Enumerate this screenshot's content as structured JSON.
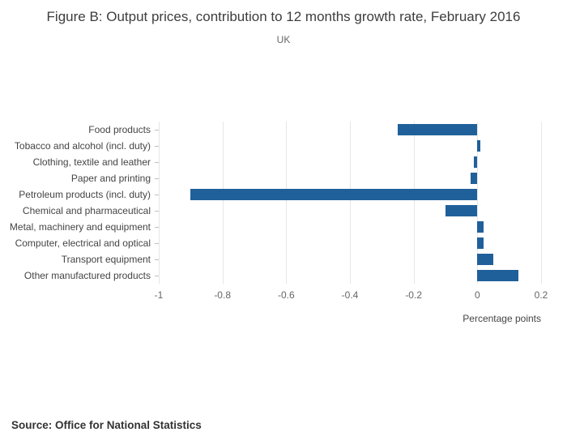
{
  "title": "Figure B: Output prices, contribution to 12 months growth rate, February 2016",
  "subtitle": "UK",
  "source": "Source: Office for National Statistics",
  "chart_data": {
    "type": "bar",
    "orientation": "horizontal",
    "title": "Figure B: Output prices, contribution to 12 months growth rate, February 2016",
    "subtitle": "UK",
    "categories": [
      "Food products",
      "Tobacco and alcohol (incl. duty)",
      "Clothing, textile and leather",
      "Paper and printing",
      "Petroleum products (incl. duty)",
      "Chemical and pharmaceutical",
      "Metal, machinery and equipment",
      "Computer, electrical and optical",
      "Transport equipment",
      "Other manufactured products"
    ],
    "values": [
      -0.25,
      0.01,
      -0.01,
      -0.02,
      -0.9,
      -0.1,
      0.02,
      0.02,
      0.05,
      0.13
    ],
    "xlabel": "Percentage points",
    "ylabel": "",
    "xlim": [
      -1,
      0.2
    ],
    "xticks": [
      -1,
      -0.8,
      -0.6,
      -0.4,
      -0.2,
      0,
      0.2
    ],
    "xtick_labels": [
      "-1",
      "-0.8",
      "-0.6",
      "-0.4",
      "-0.2",
      "0",
      "0.2"
    ],
    "bar_color": "#20609a",
    "grid": true,
    "legend": "none"
  }
}
